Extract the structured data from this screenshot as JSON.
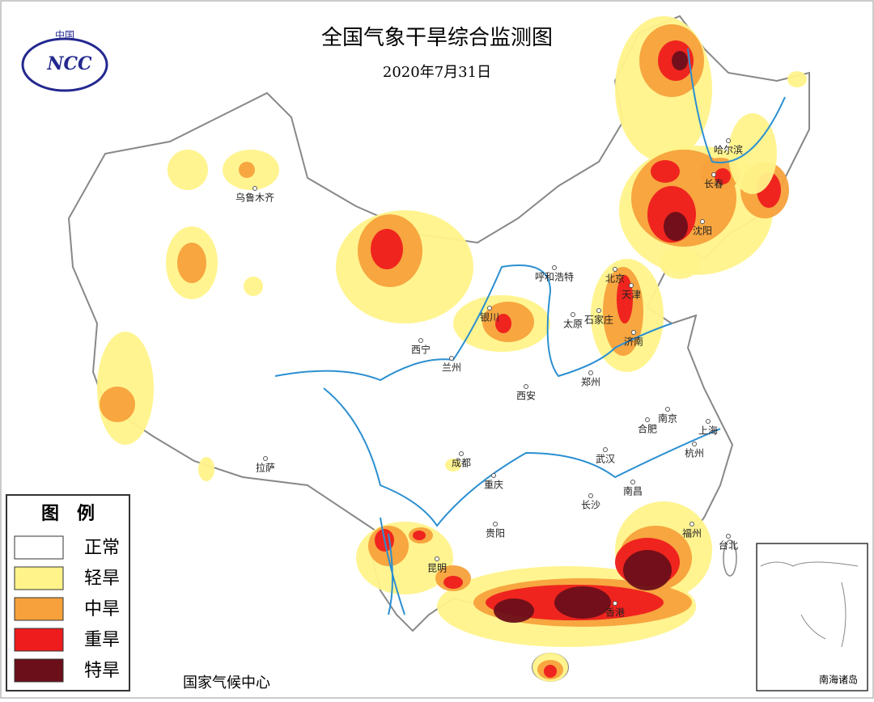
{
  "header": {
    "title": "全国气象干旱综合监测图",
    "date": "2020年7月31日",
    "logo_top": "中国",
    "logo_text": "NCC"
  },
  "legend": {
    "title": "图　例",
    "items": [
      {
        "label": "正常",
        "color": "#ffffff"
      },
      {
        "label": "轻旱",
        "color": "#fff38a"
      },
      {
        "label": "中旱",
        "color": "#f7a13c"
      },
      {
        "label": "重旱",
        "color": "#ee1c1c"
      },
      {
        "label": "特旱",
        "color": "#6b0f1a"
      }
    ]
  },
  "cities": [
    "乌鲁木齐",
    "呼和浩特",
    "哈尔滨",
    "长春",
    "沈阳",
    "北京",
    "天津",
    "石家庄",
    "太原",
    "银川",
    "济南",
    "西宁",
    "兰州",
    "郑州",
    "西安",
    "南京",
    "合肥",
    "上海",
    "成都",
    "拉萨",
    "武汉",
    "杭州",
    "重庆",
    "南昌",
    "长沙",
    "福州",
    "贵阳",
    "台北",
    "昆明",
    "香港"
  ],
  "footer": "国家气候中心",
  "inset_label": "南海诸岛"
}
